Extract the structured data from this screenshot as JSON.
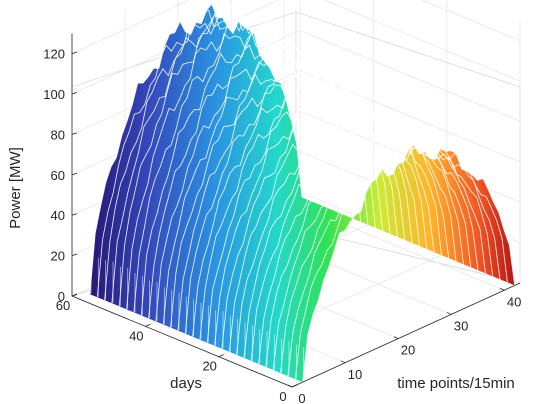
{
  "chart_data": {
    "type": "surface",
    "title": "",
    "xlabel": "time points/15min",
    "ylabel": "days",
    "zlabel": "Power [MW]",
    "x_ticks": [
      "0",
      "10",
      "20",
      "30",
      "40"
    ],
    "y_ticks": [
      "0",
      "20",
      "40",
      "60"
    ],
    "z_ticks": [
      "0",
      "20",
      "40",
      "60",
      "80",
      "100",
      "120"
    ],
    "xlim": [
      0,
      43
    ],
    "ylim": [
      0,
      60
    ],
    "zlim": [
      0,
      130
    ],
    "colormap": "jet",
    "grid": true,
    "legend": "none",
    "profile_peak_mw_by_day": [
      {
        "day": 60,
        "peak_mw": 110
      },
      {
        "day": 50,
        "peak_mw": 118
      },
      {
        "day": 40,
        "peak_mw": 105
      },
      {
        "day": 30,
        "peak_mw": 100
      },
      {
        "day": 20,
        "peak_mw": 95
      },
      {
        "day": 10,
        "peak_mw": 90
      },
      {
        "day": 0,
        "peak_mw": 88
      }
    ]
  }
}
